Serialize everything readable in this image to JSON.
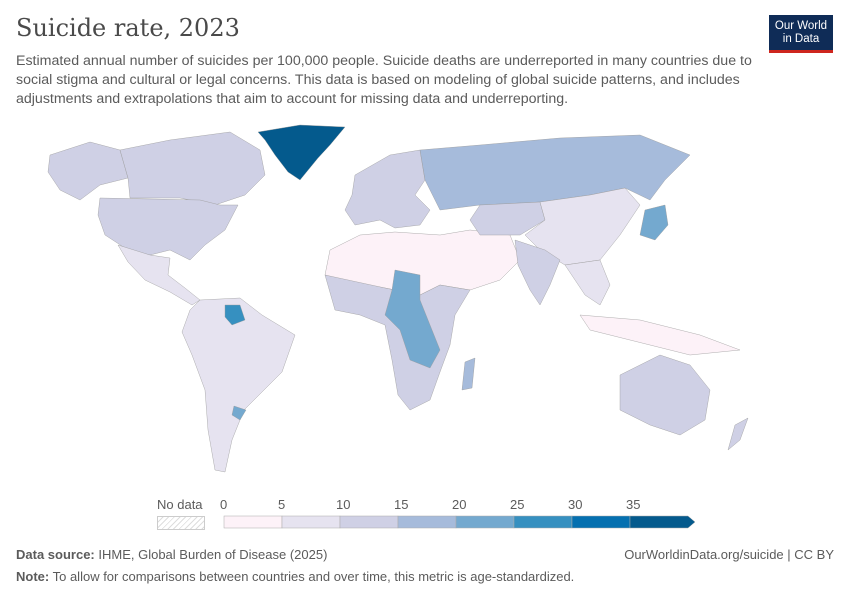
{
  "header": {
    "title": "Suicide rate, 2023",
    "subtitle": "Estimated annual number of suicides per 100,000 people. Suicide deaths are underreported in many countries due to social stigma and cultural or legal concerns. This data is based on modeling of global suicide patterns, and includes adjustments and extrapolations that aim to account for missing data and underreporting.",
    "logo_line1": "Our World",
    "logo_line2": "in Data"
  },
  "legend": {
    "no_data_label": "No data",
    "ticks": [
      "0",
      "5",
      "10",
      "15",
      "20",
      "25",
      "30",
      "35"
    ],
    "bins": [
      "#fdf2f8",
      "#e6e3f0",
      "#cfd0e5",
      "#a6bbdb",
      "#74a9cf",
      "#3690c0",
      "#0570b0",
      "#045a8d"
    ],
    "open_ended": "35+"
  },
  "footer": {
    "source_label": "Data source:",
    "source": "IHME, Global Burden of Disease (2025)",
    "url": "OurWorldinData.org/suicide | CC BY",
    "note_label": "Note:",
    "note": "To allow for comparisons between countries and over time, this metric is age-standardized."
  }
}
